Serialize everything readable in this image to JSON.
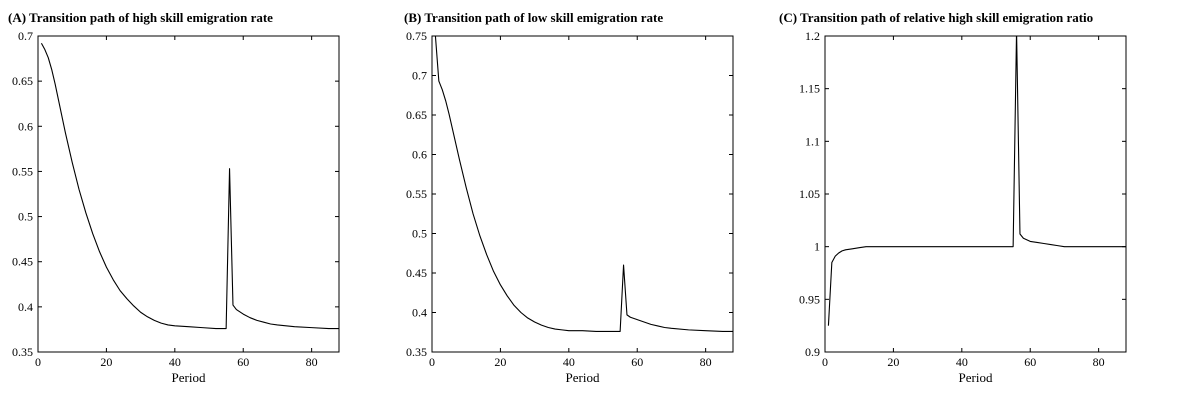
{
  "chart_data": [
    {
      "type": "line",
      "title": "(A) Transition path of high skill emigration rate",
      "xlabel": "Period",
      "ylabel": "",
      "xlim": [
        0,
        88
      ],
      "ylim": [
        0.35,
        0.7
      ],
      "xticks": [
        0,
        20,
        40,
        60,
        80
      ],
      "yticks": [
        0.35,
        0.4,
        0.45,
        0.5,
        0.55,
        0.6,
        0.65,
        0.7
      ],
      "xtick_labels": [
        "0",
        "20",
        "40",
        "60",
        "80"
      ],
      "ytick_labels": [
        "0.35",
        "0.4",
        "0.45",
        "0.5",
        "0.55",
        "0.6",
        "0.65",
        "0.7"
      ],
      "grid": false,
      "series": [
        {
          "x": [
            1,
            2,
            3,
            4,
            5,
            6,
            8,
            10,
            12,
            14,
            16,
            18,
            20,
            22,
            24,
            26,
            28,
            30,
            32,
            34,
            36,
            38,
            40,
            44,
            48,
            52,
            55,
            56,
            57,
            58,
            60,
            62,
            64,
            66,
            68,
            70,
            75,
            80,
            85,
            88
          ],
          "y": [
            0.692,
            0.685,
            0.676,
            0.663,
            0.647,
            0.629,
            0.593,
            0.56,
            0.53,
            0.504,
            0.481,
            0.461,
            0.444,
            0.43,
            0.418,
            0.409,
            0.401,
            0.394,
            0.389,
            0.385,
            0.382,
            0.38,
            0.379,
            0.378,
            0.377,
            0.376,
            0.376,
            0.553,
            0.402,
            0.397,
            0.392,
            0.388,
            0.385,
            0.383,
            0.381,
            0.38,
            0.378,
            0.377,
            0.376,
            0.376
          ]
        }
      ]
    },
    {
      "type": "line",
      "title": "(B) Transition path of low skill emigration rate",
      "xlabel": "Period",
      "ylabel": "",
      "xlim": [
        0,
        88
      ],
      "ylim": [
        0.35,
        0.75
      ],
      "xticks": [
        0,
        20,
        40,
        60,
        80
      ],
      "yticks": [
        0.35,
        0.4,
        0.45,
        0.5,
        0.55,
        0.6,
        0.65,
        0.7,
        0.75
      ],
      "xtick_labels": [
        "0",
        "20",
        "40",
        "60",
        "80"
      ],
      "ytick_labels": [
        "0.35",
        "0.4",
        "0.45",
        "0.5",
        "0.55",
        "0.6",
        "0.65",
        "0.7",
        "0.75"
      ],
      "grid": false,
      "series": [
        {
          "x": [
            1,
            2,
            3,
            4,
            5,
            6,
            8,
            10,
            12,
            14,
            16,
            18,
            20,
            22,
            24,
            26,
            28,
            30,
            32,
            34,
            36,
            38,
            40,
            44,
            48,
            52,
            55,
            56,
            57,
            58,
            60,
            62,
            64,
            66,
            68,
            70,
            75,
            80,
            85,
            88
          ],
          "y": [
            0.75,
            0.693,
            0.682,
            0.668,
            0.651,
            0.632,
            0.594,
            0.558,
            0.525,
            0.497,
            0.473,
            0.452,
            0.435,
            0.421,
            0.409,
            0.4,
            0.393,
            0.388,
            0.384,
            0.381,
            0.379,
            0.378,
            0.377,
            0.377,
            0.376,
            0.376,
            0.376,
            0.46,
            0.397,
            0.394,
            0.391,
            0.388,
            0.385,
            0.383,
            0.381,
            0.38,
            0.378,
            0.377,
            0.376,
            0.376
          ]
        }
      ]
    },
    {
      "type": "line",
      "title": "(C) Transition path of relative high skill emigration ratio",
      "xlabel": "Period",
      "ylabel": "",
      "xlim": [
        0,
        88
      ],
      "ylim": [
        0.9,
        1.2
      ],
      "xticks": [
        0,
        20,
        40,
        60,
        80
      ],
      "yticks": [
        0.9,
        0.95,
        1.0,
        1.05,
        1.1,
        1.15,
        1.2
      ],
      "xtick_labels": [
        "0",
        "20",
        "40",
        "60",
        "80"
      ],
      "ytick_labels": [
        "0.9",
        "0.95",
        "1",
        "1.05",
        "1.1",
        "1.15",
        "1.2"
      ],
      "grid": false,
      "series": [
        {
          "x": [
            1,
            2,
            3,
            4,
            5,
            6,
            8,
            10,
            12,
            20,
            30,
            40,
            50,
            55,
            56,
            57,
            58,
            60,
            62,
            64,
            66,
            68,
            70,
            75,
            80,
            88
          ],
          "y": [
            0.925,
            0.985,
            0.991,
            0.994,
            0.996,
            0.997,
            0.998,
            0.999,
            1.0,
            1.0,
            1.0,
            1.0,
            1.0,
            1.0,
            1.205,
            1.012,
            1.008,
            1.005,
            1.004,
            1.003,
            1.002,
            1.001,
            1.0,
            1.0,
            1.0,
            1.0
          ]
        }
      ]
    }
  ]
}
